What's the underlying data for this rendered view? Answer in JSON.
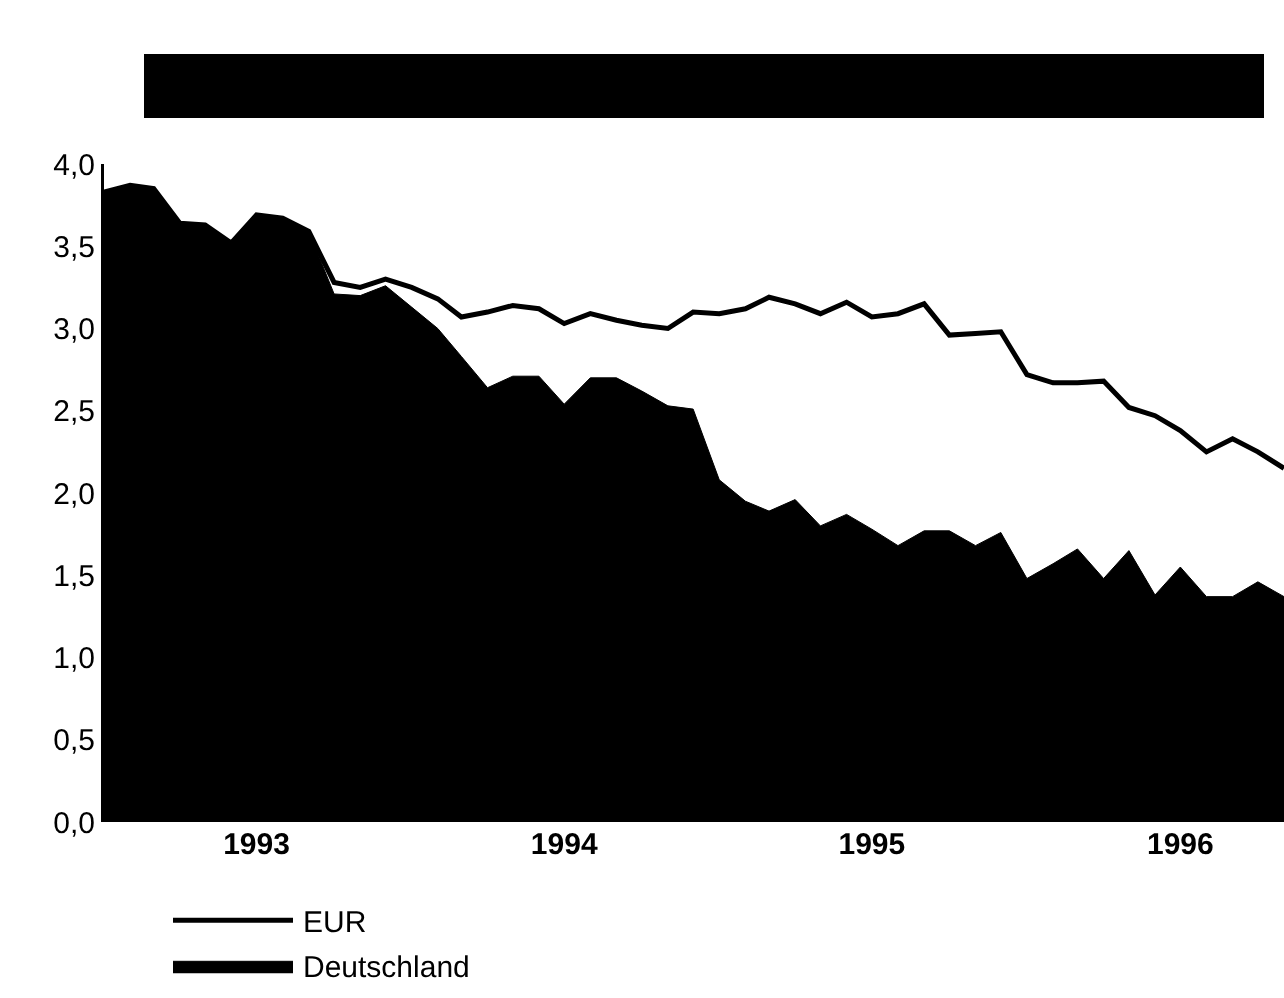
{
  "chart_data": {
    "type": "area",
    "x": [
      "1993-01",
      "1993-02",
      "1993-03",
      "1993-04",
      "1993-05",
      "1993-06",
      "1993-07",
      "1993-08",
      "1993-09",
      "1993-10",
      "1993-11",
      "1993-12",
      "1994-01",
      "1994-02",
      "1994-03",
      "1994-04",
      "1994-05",
      "1994-06",
      "1994-07",
      "1994-08",
      "1994-09",
      "1994-10",
      "1994-11",
      "1994-12",
      "1995-01",
      "1995-02",
      "1995-03",
      "1995-04",
      "1995-05",
      "1995-06",
      "1995-07",
      "1995-08",
      "1995-09",
      "1995-10",
      "1995-11",
      "1995-12",
      "1996-01",
      "1996-02",
      "1996-03",
      "1996-04",
      "1996-05",
      "1996-06",
      "1996-07",
      "1996-08",
      "1996-09",
      "1996-10",
      "1996-11"
    ],
    "series": [
      {
        "name": "Deutschland",
        "color": "#000000",
        "values": [
          3.83,
          3.87,
          3.85,
          3.64,
          3.63,
          3.52,
          3.69,
          3.67,
          3.59,
          3.21,
          3.2,
          3.26,
          3.13,
          3.0,
          2.83,
          2.64,
          2.71,
          2.71,
          2.54,
          2.7,
          2.7,
          2.62,
          2.53,
          2.51,
          2.08,
          1.95,
          1.89,
          1.96,
          1.8,
          1.87,
          1.78,
          1.68,
          1.77,
          1.77,
          1.68,
          1.76,
          1.48,
          1.57,
          1.66,
          1.48,
          1.65,
          1.38,
          1.55,
          1.37,
          1.37,
          1.46,
          1.37
        ]
      },
      {
        "name": "EUR",
        "type": "line",
        "color": "#000000",
        "values": [
          3.83,
          3.87,
          3.85,
          3.64,
          3.63,
          3.52,
          3.69,
          3.67,
          3.59,
          3.28,
          3.25,
          3.3,
          3.25,
          3.18,
          3.07,
          3.1,
          3.14,
          3.12,
          3.03,
          3.09,
          3.05,
          3.02,
          3.0,
          3.1,
          3.09,
          3.12,
          3.19,
          3.15,
          3.09,
          3.16,
          3.07,
          3.09,
          3.15,
          2.96,
          2.97,
          2.98,
          2.72,
          2.67,
          2.67,
          2.68,
          2.52,
          2.47,
          2.38,
          2.25,
          2.33,
          2.25,
          2.15
        ]
      }
    ],
    "xlim": [
      "1993-01",
      "1996-11"
    ],
    "xticks": [
      {
        "value": "1993-07",
        "label": "1993"
      },
      {
        "value": "1994-07",
        "label": "1994"
      },
      {
        "value": "1995-07",
        "label": "1995"
      },
      {
        "value": "1996-07",
        "label": "1996"
      }
    ],
    "ylim": [
      0,
      4
    ],
    "yticks": [
      {
        "value": 0,
        "label": "0,0"
      },
      {
        "value": 0.5,
        "label": "0,5"
      },
      {
        "value": 1,
        "label": "1,0"
      },
      {
        "value": 1.5,
        "label": "1,5"
      },
      {
        "value": 2,
        "label": "2,0"
      },
      {
        "value": 2.5,
        "label": "2,5"
      },
      {
        "value": 3,
        "label": "3,0"
      },
      {
        "value": 3.5,
        "label": "3,5"
      },
      {
        "value": 4,
        "label": "4,0"
      }
    ],
    "grid": false,
    "legend": "bottom",
    "line_style": "solid",
    "marker": "none"
  }
}
